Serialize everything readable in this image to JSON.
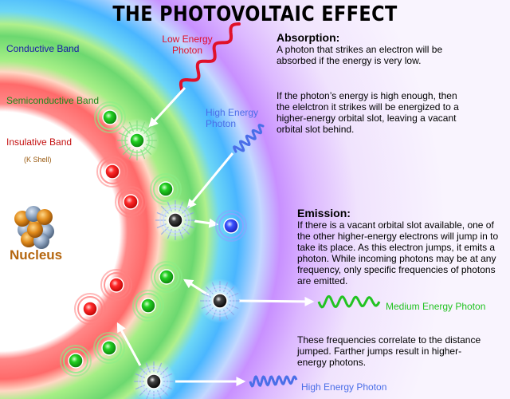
{
  "title": "THE PHOTOVOLTAIC EFFECT",
  "bands": {
    "conductive": "Conductive Band",
    "semiconductive": "Semiconductive Band",
    "insulative": "Insulative Band",
    "k_shell": "(K Shell)"
  },
  "nucleus_label": "Nucleus",
  "photons": {
    "low_energy_incoming": "Low Energy Photon",
    "high_energy_incoming": "High Energy Photon",
    "medium_energy_emitted": "Medium Energy Photon",
    "high_energy_emitted": "High Energy Photon"
  },
  "absorption": {
    "heading": "Absorption:",
    "paragraph1": "A photon that strikes an electron will be absorbed if the energy is very low.",
    "paragraph2": "If the photon’s energy is high enough, then the elelctron it strikes will be energized to a higher-energy orbital slot, leaving a vacant orbital slot behind."
  },
  "emission": {
    "heading": "Emission:",
    "paragraph1": "If there is a vacant orbital slot available, one of the other higher-energy electrons will jump in to take its place. As this electron jumps, it emits a photon. While incoming photons may be at any frequency, only specific frequencies of photons are emitted.",
    "paragraph2": "These frequencies correlate to the distance jumped. Farther jumps result in higher-energy photons."
  },
  "colors": {
    "low_energy": "#e0102a",
    "high_energy": "#4a6ee8",
    "medium_energy": "#22c322",
    "conductive_label": "#1a1aa8",
    "semiconductive_label": "#1a8a1a",
    "insulative_label": "#c41010",
    "k_shell_label": "#9a5a10",
    "nucleus_label": "#b5660e",
    "electron_red": "#ff2020",
    "electron_green": "#18c818",
    "electron_blue": "#3a52ff",
    "electron_energized": "#1a1a1a"
  }
}
